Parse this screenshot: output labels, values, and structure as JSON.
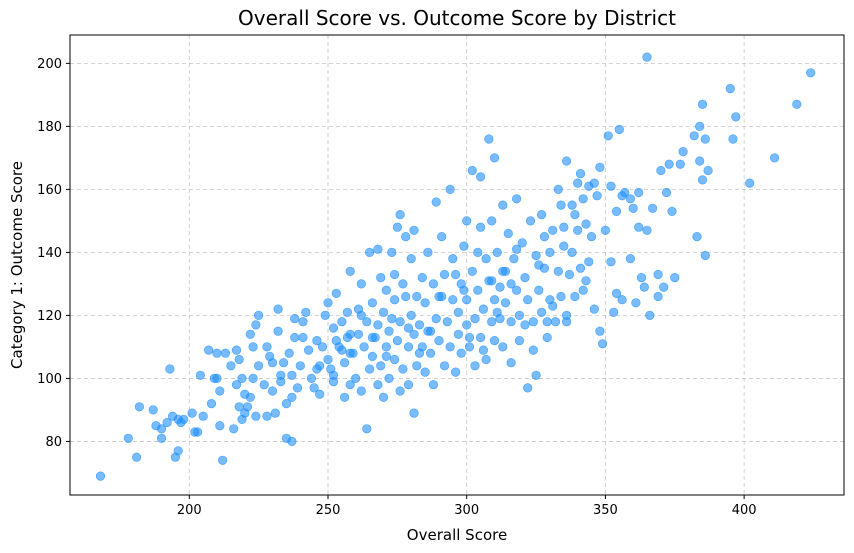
{
  "chart_data": {
    "type": "scatter",
    "title": "Overall Score vs. Outcome Score by District",
    "xlabel": "Overall Score",
    "ylabel": "Category 1: Outcome Score",
    "xlim": [
      157,
      436
    ],
    "ylim": [
      63,
      209
    ],
    "xticks": [
      200,
      250,
      300,
      350,
      400
    ],
    "yticks": [
      80,
      100,
      120,
      140,
      160,
      180,
      200
    ],
    "grid": true,
    "legend": "none",
    "color": "#1E90FF",
    "points": [
      [
        168,
        69
      ],
      [
        178,
        81
      ],
      [
        181,
        75
      ],
      [
        182,
        91
      ],
      [
        187,
        90
      ],
      [
        188,
        85
      ],
      [
        190,
        84
      ],
      [
        190,
        81
      ],
      [
        192,
        86
      ],
      [
        193,
        103
      ],
      [
        194,
        88
      ],
      [
        195,
        75
      ],
      [
        196,
        87
      ],
      [
        197,
        86
      ],
      [
        198,
        87
      ],
      [
        196,
        77
      ],
      [
        201,
        89
      ],
      [
        202,
        83
      ],
      [
        203,
        83
      ],
      [
        204,
        101
      ],
      [
        207,
        109
      ],
      [
        208,
        92
      ],
      [
        209,
        100
      ],
      [
        210,
        108
      ],
      [
        211,
        85
      ],
      [
        210,
        100
      ],
      [
        211,
        96
      ],
      [
        212,
        74
      ],
      [
        213,
        108
      ],
      [
        215,
        104
      ],
      [
        216,
        84
      ],
      [
        217,
        109
      ],
      [
        217,
        98
      ],
      [
        218,
        91
      ],
      [
        218,
        106
      ],
      [
        219,
        87
      ],
      [
        219,
        100
      ],
      [
        220,
        95
      ],
      [
        220,
        89
      ],
      [
        221,
        91
      ],
      [
        222,
        114
      ],
      [
        223,
        100
      ],
      [
        223,
        110
      ],
      [
        224,
        88
      ],
      [
        224,
        117
      ],
      [
        225,
        120
      ],
      [
        225,
        104
      ],
      [
        227,
        98
      ],
      [
        228,
        88
      ],
      [
        228,
        110
      ],
      [
        230,
        105
      ],
      [
        230,
        96
      ],
      [
        231,
        89
      ],
      [
        232,
        115
      ],
      [
        232,
        122
      ],
      [
        233,
        99
      ],
      [
        234,
        105
      ],
      [
        235,
        81
      ],
      [
        235,
        92
      ],
      [
        236,
        108
      ],
      [
        237,
        94
      ],
      [
        237,
        80
      ],
      [
        237,
        101
      ],
      [
        238,
        119
      ],
      [
        239,
        97
      ],
      [
        240,
        104
      ],
      [
        241,
        113
      ],
      [
        242,
        121
      ],
      [
        243,
        109
      ],
      [
        244,
        100
      ],
      [
        245,
        97
      ],
      [
        246,
        112
      ],
      [
        247,
        95
      ],
      [
        248,
        110
      ],
      [
        249,
        120
      ],
      [
        250,
        106
      ],
      [
        250,
        124
      ],
      [
        251,
        103
      ],
      [
        252,
        116
      ],
      [
        252,
        99
      ],
      [
        253,
        112
      ],
      [
        253,
        127
      ],
      [
        254,
        110
      ],
      [
        255,
        118
      ],
      [
        256,
        94
      ],
      [
        256,
        105
      ],
      [
        257,
        121
      ],
      [
        257,
        113
      ],
      [
        258,
        134
      ],
      [
        258,
        98
      ],
      [
        259,
        108
      ],
      [
        260,
        100
      ],
      [
        261,
        114
      ],
      [
        261,
        122
      ],
      [
        262,
        130
      ],
      [
        262,
        96
      ],
      [
        263,
        110
      ],
      [
        264,
        118
      ],
      [
        264,
        84
      ],
      [
        265,
        103
      ],
      [
        265,
        140
      ],
      [
        266,
        124
      ],
      [
        266,
        107
      ],
      [
        267,
        113
      ],
      [
        268,
        98
      ],
      [
        268,
        117
      ],
      [
        269,
        132
      ],
      [
        269,
        104
      ],
      [
        270,
        121
      ],
      [
        270,
        94
      ],
      [
        271,
        110
      ],
      [
        271,
        128
      ],
      [
        272,
        115
      ],
      [
        272,
        100
      ],
      [
        273,
        119
      ],
      [
        273,
        140
      ],
      [
        274,
        106
      ],
      [
        274,
        125
      ],
      [
        275,
        112
      ],
      [
        275,
        148
      ],
      [
        276,
        96
      ],
      [
        276,
        118
      ],
      [
        277,
        130
      ],
      [
        277,
        103
      ],
      [
        278,
        126
      ],
      [
        278,
        145
      ],
      [
        279,
        110
      ],
      [
        279,
        98
      ],
      [
        280,
        120
      ],
      [
        280,
        138
      ],
      [
        281,
        89
      ],
      [
        281,
        114
      ],
      [
        282,
        126
      ],
      [
        282,
        104
      ],
      [
        283,
        117
      ],
      [
        284,
        132
      ],
      [
        284,
        110
      ],
      [
        285,
        102
      ],
      [
        285,
        124
      ],
      [
        286,
        140
      ],
      [
        287,
        115
      ],
      [
        287,
        108
      ],
      [
        288,
        130
      ],
      [
        288,
        98
      ],
      [
        289,
        119
      ],
      [
        290,
        126
      ],
      [
        290,
        112
      ],
      [
        291,
        145
      ],
      [
        292,
        104
      ],
      [
        292,
        133
      ],
      [
        293,
        118
      ],
      [
        294,
        160
      ],
      [
        294,
        110
      ],
      [
        295,
        125
      ],
      [
        295,
        138
      ],
      [
        296,
        102
      ],
      [
        297,
        121
      ],
      [
        297,
        114
      ],
      [
        298,
        130
      ],
      [
        298,
        108
      ],
      [
        299,
        142
      ],
      [
        300,
        117
      ],
      [
        300,
        125
      ],
      [
        301,
        110
      ],
      [
        302,
        166
      ],
      [
        302,
        134
      ],
      [
        303,
        119
      ],
      [
        303,
        104
      ],
      [
        304,
        128
      ],
      [
        305,
        148
      ],
      [
        305,
        113
      ],
      [
        306,
        122
      ],
      [
        307,
        138
      ],
      [
        307,
        106
      ],
      [
        308,
        131
      ],
      [
        308,
        176
      ],
      [
        309,
        118
      ],
      [
        309,
        150
      ],
      [
        310,
        125
      ],
      [
        310,
        112
      ],
      [
        311,
        140
      ],
      [
        312,
        129
      ],
      [
        312,
        119
      ],
      [
        313,
        155
      ],
      [
        313,
        110
      ],
      [
        314,
        134
      ],
      [
        314,
        124
      ],
      [
        315,
        146
      ],
      [
        316,
        118
      ],
      [
        316,
        105
      ],
      [
        317,
        138
      ],
      [
        318,
        128
      ],
      [
        318,
        157
      ],
      [
        319,
        120
      ],
      [
        319,
        112
      ],
      [
        320,
        143
      ],
      [
        321,
        132
      ],
      [
        322,
        97
      ],
      [
        322,
        125
      ],
      [
        323,
        150
      ],
      [
        324,
        118
      ],
      [
        325,
        139
      ],
      [
        325,
        101
      ],
      [
        326,
        128
      ],
      [
        327,
        152
      ],
      [
        327,
        121
      ],
      [
        328,
        135
      ],
      [
        328,
        145
      ],
      [
        329,
        113
      ],
      [
        330,
        140
      ],
      [
        330,
        125
      ],
      [
        331,
        147
      ],
      [
        332,
        118
      ],
      [
        333,
        160
      ],
      [
        333,
        134
      ],
      [
        334,
        126
      ],
      [
        335,
        142
      ],
      [
        335,
        148
      ],
      [
        336,
        169
      ],
      [
        336,
        120
      ],
      [
        337,
        133
      ],
      [
        338,
        155
      ],
      [
        338,
        140
      ],
      [
        339,
        126
      ],
      [
        340,
        162
      ],
      [
        340,
        147
      ],
      [
        341,
        165
      ],
      [
        341,
        135
      ],
      [
        342,
        128
      ],
      [
        342,
        157
      ],
      [
        343,
        149
      ],
      [
        344,
        161
      ],
      [
        344,
        137
      ],
      [
        345,
        145
      ],
      [
        346,
        122
      ],
      [
        347,
        158
      ],
      [
        348,
        115
      ],
      [
        348,
        167
      ],
      [
        349,
        111
      ],
      [
        350,
        147
      ],
      [
        351,
        177
      ],
      [
        352,
        161
      ],
      [
        352,
        137
      ],
      [
        353,
        121
      ],
      [
        354,
        153
      ],
      [
        354,
        127
      ],
      [
        355,
        179
      ],
      [
        356,
        158
      ],
      [
        357,
        159
      ],
      [
        359,
        138
      ],
      [
        360,
        154
      ],
      [
        361,
        124
      ],
      [
        362,
        159
      ],
      [
        362,
        148
      ],
      [
        363,
        132
      ],
      [
        364,
        129
      ],
      [
        365,
        202
      ],
      [
        365,
        147
      ],
      [
        366,
        120
      ],
      [
        367,
        154
      ],
      [
        369,
        126
      ],
      [
        369,
        133
      ],
      [
        370,
        166
      ],
      [
        372,
        159
      ],
      [
        373,
        168
      ],
      [
        374,
        153
      ],
      [
        375,
        132
      ],
      [
        377,
        168
      ],
      [
        378,
        172
      ],
      [
        382,
        177
      ],
      [
        383,
        145
      ],
      [
        384,
        169
      ],
      [
        384,
        180
      ],
      [
        385,
        163
      ],
      [
        385,
        187
      ],
      [
        386,
        176
      ],
      [
        386,
        139
      ],
      [
        387,
        166
      ],
      [
        395,
        192
      ],
      [
        396,
        176
      ],
      [
        397,
        183
      ],
      [
        402,
        162
      ],
      [
        411,
        170
      ],
      [
        419,
        187
      ],
      [
        424,
        197
      ],
      [
        205,
        88
      ],
      [
        222,
        94
      ],
      [
        238,
        113
      ],
      [
        246,
        103
      ],
      [
        255,
        109
      ],
      [
        262,
        120
      ],
      [
        268,
        141
      ],
      [
        274,
        133
      ],
      [
        279,
        116
      ],
      [
        283,
        108
      ],
      [
        291,
        126
      ],
      [
        296,
        133
      ],
      [
        301,
        113
      ],
      [
        304,
        140
      ],
      [
        309,
        131
      ],
      [
        313,
        134
      ],
      [
        318,
        141
      ],
      [
        321,
        117
      ],
      [
        326,
        136
      ],
      [
        331,
        123
      ],
      [
        336,
        118
      ],
      [
        339,
        152
      ],
      [
        343,
        131
      ],
      [
        346,
        162
      ],
      [
        356,
        125
      ],
      [
        359,
        157
      ],
      [
        371,
        129
      ],
      [
        252,
        101
      ],
      [
        258,
        114
      ],
      [
        286,
        115
      ],
      [
        299,
        128
      ],
      [
        306,
        109
      ],
      [
        311,
        121
      ],
      [
        316,
        130
      ],
      [
        324,
        109
      ],
      [
        329,
        118
      ],
      [
        334,
        155
      ],
      [
        276,
        152
      ],
      [
        281,
        147
      ],
      [
        289,
        156
      ],
      [
        300,
        150
      ],
      [
        305,
        164
      ],
      [
        310,
        170
      ],
      [
        266,
        113
      ],
      [
        271,
        107
      ],
      [
        247,
        104
      ],
      [
        233,
        101
      ],
      [
        229,
        107
      ],
      [
        241,
        118
      ],
      [
        258,
        108
      ]
    ]
  }
}
